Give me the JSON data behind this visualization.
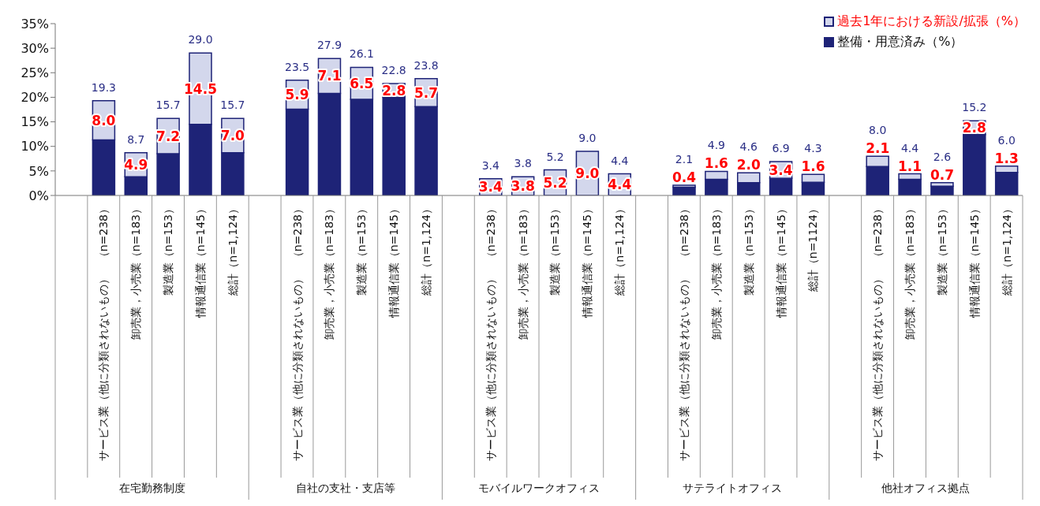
{
  "chart_data": {
    "type": "bar",
    "stacked": true,
    "legend": "top right",
    "categories": [
      null,
      "サービス業（他に分類されないもの）　（n=238）",
      "卸売業，小売業（n=183）",
      "製造業（n=153）",
      "情報通信業（n=145）",
      "総計（n=1,124）",
      null,
      "サービス業（他に分類されないもの）　（n=238）",
      "卸売業，小売業（n=183）",
      "製造業（n=153）",
      "情報通信業（n=145）",
      "総計（n=1,124）",
      null,
      "サービス業（他に分類されないもの）　（n=238）",
      "卸売業，小売業（n=183）",
      "製造業（n=153）",
      "情報通信業（n=145）",
      "総計（n=1,124）",
      null,
      "サービス業（他に分類されないもの）　（n=238）",
      "卸売業，小売業（n=183）",
      "製造業（n=153）",
      "情報通信業（n=145）",
      "総計（n=1124）",
      null,
      "サービス業（他に分類されないもの）　（n=238）",
      "卸売業，小売業（n=183）",
      "製造業（n=153）",
      "情報通信業（n=145）",
      "総計（n=1,124）"
    ],
    "series": [
      {
        "name": "整備・用意済み（%）",
        "color": "#1e2377",
        "values": [
          null,
          11.3,
          3.8,
          8.5,
          14.5,
          8.7,
          null,
          17.6,
          20.8,
          19.6,
          20.0,
          18.1,
          null,
          0,
          0,
          0,
          0,
          0,
          null,
          1.7,
          3.3,
          2.6,
          3.5,
          2.7,
          null,
          5.9,
          3.3,
          1.9,
          12.4,
          4.7
        ]
      },
      {
        "name": "過去1年における新設/拡張（%）",
        "color": "#d3d7ec",
        "values": [
          null,
          8.0,
          4.9,
          7.2,
          14.5,
          7.0,
          null,
          5.9,
          7.1,
          6.5,
          2.8,
          5.7,
          null,
          3.4,
          3.8,
          5.2,
          9.0,
          4.4,
          null,
          0.4,
          1.6,
          2.0,
          3.4,
          1.6,
          null,
          2.1,
          1.1,
          0.7,
          2.8,
          1.3
        ],
        "value_labels": [
          null,
          "8.0",
          "4.9",
          "7.2",
          "14.5",
          "7.0",
          null,
          "5.9",
          "7.1",
          "6.5",
          "2.8",
          "5.7",
          null,
          "3.4",
          "3.8",
          "5.2",
          "9.0",
          "4.4",
          null,
          "0.4",
          "1.6",
          "2.0",
          "3.4",
          "1.6",
          null,
          "2.1",
          "1.1",
          "0.7",
          "2.8",
          "1.3"
        ]
      }
    ],
    "totals": [
      null,
      "19.3",
      "8.7",
      "15.7",
      "29.0",
      "15.7",
      null,
      "23.5",
      "27.9",
      "26.1",
      "22.8",
      "23.8",
      null,
      "3.4",
      "3.8",
      "5.2",
      "9.0",
      "4.4",
      null,
      "2.1",
      "4.9",
      "4.6",
      "6.9",
      "4.3",
      null,
      "8.0",
      "4.4",
      "2.6",
      "15.2",
      "6.0"
    ],
    "annotations": [
      "在宅勤務制度",
      "自社の支社・支店等",
      "モバイルワークオフィス",
      "サテライトオフィス",
      "他社オフィス拠点"
    ],
    "ylim": [
      0,
      35
    ],
    "yticks": [
      {
        "value": 0,
        "label": "0%"
      },
      {
        "value": 5,
        "label": "5%"
      },
      {
        "value": 10,
        "label": "10%"
      },
      {
        "value": 15,
        "label": "15%"
      },
      {
        "value": 20,
        "label": "20%"
      },
      {
        "value": 25,
        "label": "25%"
      },
      {
        "value": 30,
        "label": "30%"
      },
      {
        "value": 35,
        "label": "35%"
      }
    ]
  }
}
